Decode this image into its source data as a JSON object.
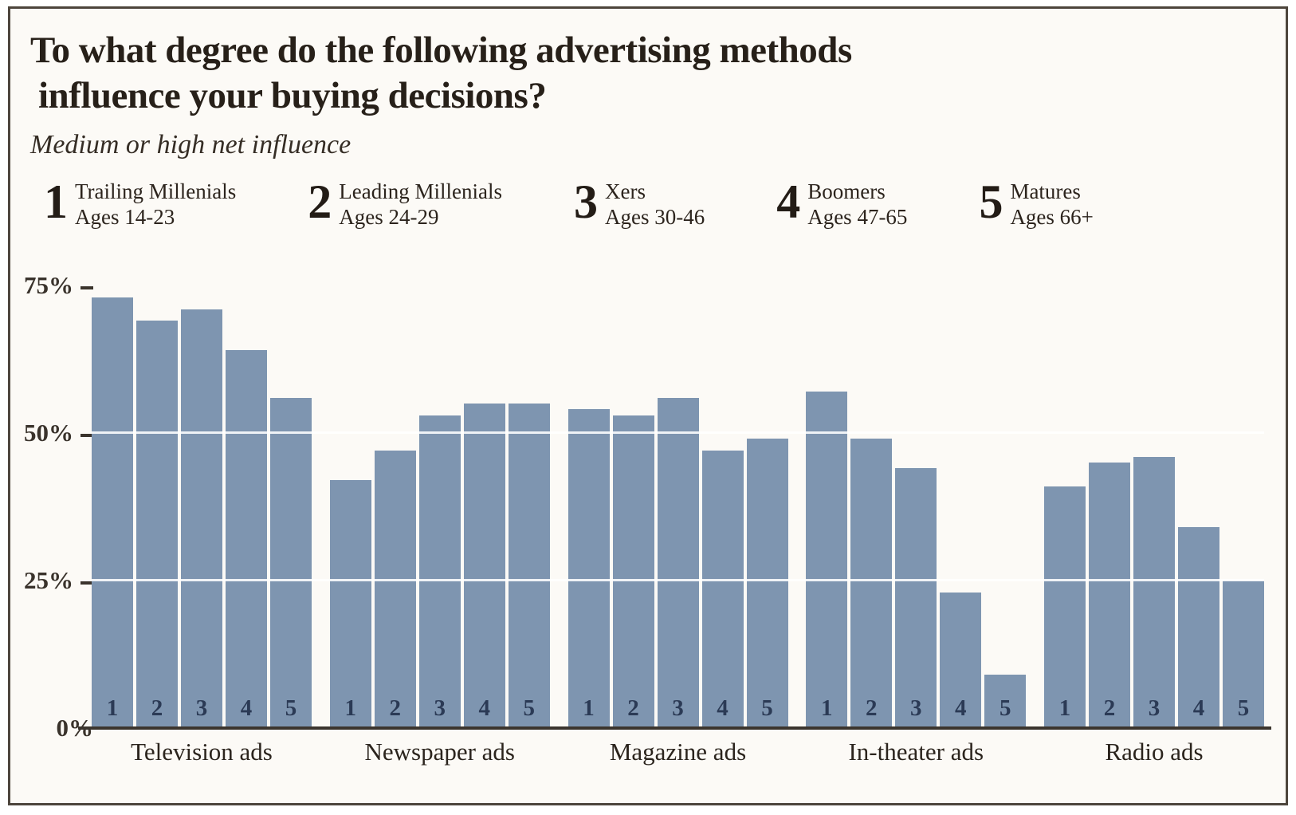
{
  "title": {
    "line1": "To what degree do the following advertising methods",
    "line2": "influence your buying decisions?"
  },
  "subtitle": "Medium or high net influence",
  "legend": [
    {
      "num": "1",
      "name": "Trailing Millenials",
      "ages": "Ages 14-23"
    },
    {
      "num": "2",
      "name": "Leading Millenials",
      "ages": "Ages 24-29"
    },
    {
      "num": "3",
      "name": "Xers",
      "ages": "Ages 30-46"
    },
    {
      "num": "4",
      "name": "Boomers",
      "ages": "Ages 47-65"
    },
    {
      "num": "5",
      "name": "Matures",
      "ages": "Ages 66+"
    }
  ],
  "chart_data": {
    "type": "bar",
    "title": "To what degree do the following advertising methods influence your buying decisions?",
    "subtitle": "Medium or high net influence",
    "categories": [
      "Television ads",
      "Newspaper ads",
      "Magazine ads",
      "In-theater ads",
      "Radio ads"
    ],
    "series": [
      {
        "name": "1 Trailing Millenials (Ages 14-23)",
        "values": [
          73,
          42,
          54,
          57,
          41
        ]
      },
      {
        "name": "2 Leading Millenials (Ages 24-29)",
        "values": [
          69,
          47,
          53,
          49,
          45
        ]
      },
      {
        "name": "3 Xers (Ages 30-46)",
        "values": [
          71,
          53,
          56,
          44,
          46
        ]
      },
      {
        "name": "4 Boomers (Ages 47-65)",
        "values": [
          64,
          55,
          47,
          23,
          34
        ]
      },
      {
        "name": "5 Matures (Ages 66+)",
        "values": [
          56,
          55,
          49,
          9,
          25
        ]
      }
    ],
    "bar_labels": [
      "1",
      "2",
      "3",
      "4",
      "5"
    ],
    "ylabel": "Medium or high net influence (%)",
    "ylim": [
      0,
      75
    ],
    "y_ticks": [
      {
        "label": "75%",
        "pct": 75
      },
      {
        "label": "50%",
        "pct": 50
      },
      {
        "label": "25%",
        "pct": 25
      },
      {
        "label": "0%",
        "pct": 0
      }
    ],
    "gridlines_pct": [
      25,
      50
    ],
    "legend_position": "top",
    "grid": true
  },
  "colors": {
    "bar": "#7e95b0",
    "ink": "#272019",
    "axis": "#3b352e",
    "bar_number": "#2b3a55",
    "background": "#fcfaf6",
    "border": "#4d453c",
    "gridline": "#ffffff"
  }
}
